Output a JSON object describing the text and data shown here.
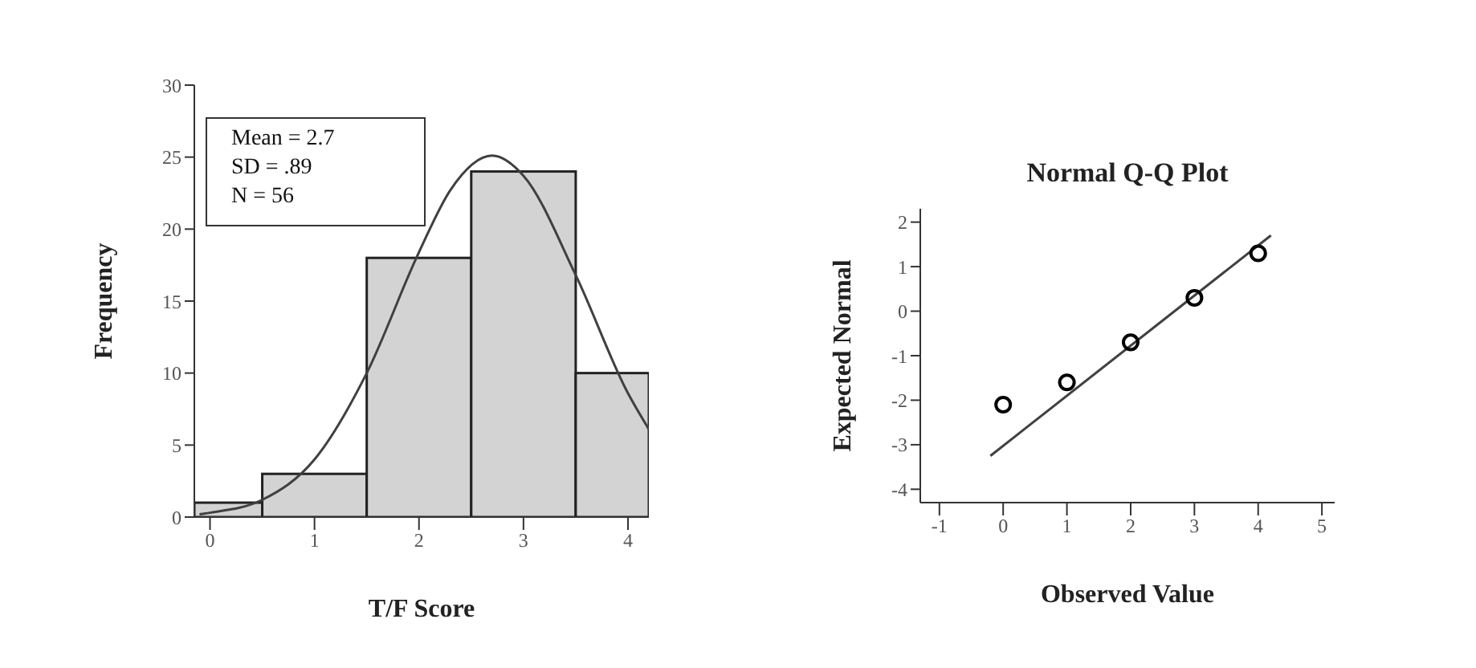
{
  "chart_data": [
    {
      "type": "histogram",
      "xlabel": "T/F Score",
      "ylabel": "Frequency",
      "bins": [
        -0.15,
        0.5,
        1.5,
        2.5,
        3.5,
        4.2
      ],
      "xlim": [
        -0.15,
        4.2
      ],
      "xticks": [
        0,
        1,
        2,
        3,
        4
      ],
      "ylim": [
        0,
        30
      ],
      "yticks": [
        0,
        5,
        10,
        15,
        20,
        25,
        30
      ],
      "annotations": [
        "Mean = 2.7",
        "SD = .89",
        "N = 56"
      ],
      "series": [
        {
          "values": [
            1,
            3,
            18,
            24,
            10
          ],
          "color": "#d3d3d3"
        },
        {
          "type": "line",
          "x": [
            -0.1,
            0,
            0.5,
            1,
            1.5,
            2,
            2.3,
            2.7,
            3,
            3.5,
            4,
            4.2
          ],
          "values": [
            0.2,
            0.3,
            1.2,
            4,
            10,
            18.4,
            22.7,
            25.1,
            23.7,
            16.8,
            8.6,
            6.1
          ],
          "color": "#404040"
        }
      ]
    },
    {
      "type": "scatter",
      "title": "Normal Q-Q Plot",
      "xlabel": "Observed Value",
      "ylabel": "Expected Normal",
      "xlim": [
        -1.3,
        5.2
      ],
      "xticks": [
        -1,
        0,
        1,
        2,
        3,
        4,
        5
      ],
      "ylim": [
        -4.3,
        2.3
      ],
      "yticks": [
        -4,
        -3,
        -2,
        -1,
        0,
        1,
        2
      ],
      "series": [
        {
          "marker": "circle",
          "x": [
            0,
            1,
            2,
            3,
            4
          ],
          "values": [
            -2.1,
            -1.6,
            -0.7,
            0.3,
            1.3
          ],
          "color": "#000000"
        },
        {
          "type": "line",
          "x": [
            -0.2,
            4.2
          ],
          "values": [
            -3.25,
            1.7
          ],
          "color": "#404040"
        }
      ]
    }
  ]
}
